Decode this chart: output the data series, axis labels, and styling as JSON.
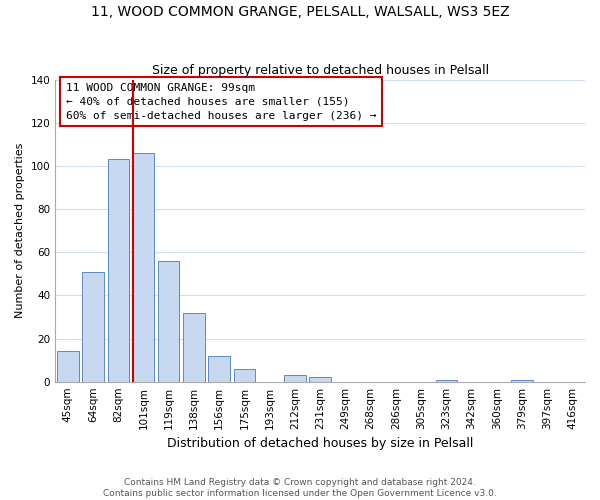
{
  "title": "11, WOOD COMMON GRANGE, PELSALL, WALSALL, WS3 5EZ",
  "subtitle": "Size of property relative to detached houses in Pelsall",
  "xlabel": "Distribution of detached houses by size in Pelsall",
  "ylabel": "Number of detached properties",
  "bin_labels": [
    "45sqm",
    "64sqm",
    "82sqm",
    "101sqm",
    "119sqm",
    "138sqm",
    "156sqm",
    "175sqm",
    "193sqm",
    "212sqm",
    "231sqm",
    "249sqm",
    "268sqm",
    "286sqm",
    "305sqm",
    "323sqm",
    "342sqm",
    "360sqm",
    "379sqm",
    "397sqm",
    "416sqm"
  ],
  "bar_heights": [
    14,
    51,
    103,
    106,
    56,
    32,
    12,
    6,
    0,
    3,
    2,
    0,
    0,
    0,
    0,
    1,
    0,
    0,
    1,
    0,
    0
  ],
  "bar_color": "#c6d9f1",
  "bar_edge_color": "#5b8ac5",
  "vline_color": "#cc0000",
  "vline_bar_index": 3,
  "ylim": [
    0,
    140
  ],
  "yticks": [
    0,
    20,
    40,
    60,
    80,
    100,
    120,
    140
  ],
  "annotation_line1": "11 WOOD COMMON GRANGE: 99sqm",
  "annotation_line2": "← 40% of detached houses are smaller (155)",
  "annotation_line3": "60% of semi-detached houses are larger (236) →",
  "footer_line1": "Contains HM Land Registry data © Crown copyright and database right 2024.",
  "footer_line2": "Contains public sector information licensed under the Open Government Licence v3.0.",
  "background_color": "#ffffff",
  "grid_color": "#cfddf0",
  "title_fontsize": 10,
  "subtitle_fontsize": 9,
  "ylabel_fontsize": 8,
  "xlabel_fontsize": 9,
  "tick_fontsize": 7.5,
  "annotation_fontsize": 8,
  "footer_fontsize": 6.5
}
